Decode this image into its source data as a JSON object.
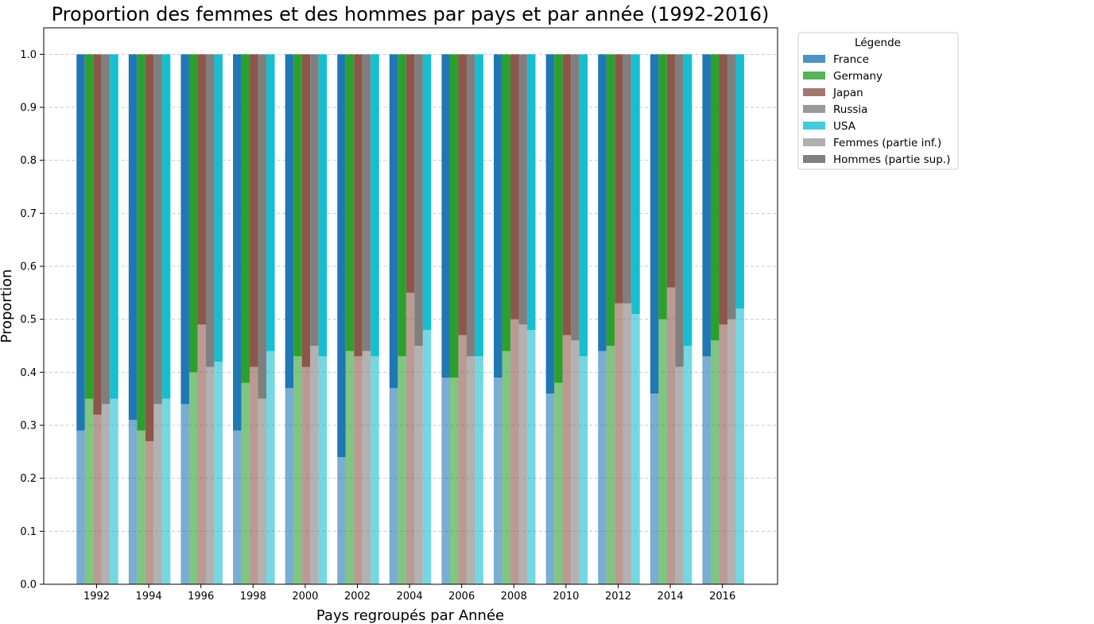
{
  "chart_data": {
    "type": "bar",
    "subtype": "grouped-stacked-proportion",
    "title": "Proportion des femmes et des hommes par pays et par année (1992-2016)",
    "xlabel": "Pays regroupés par Année",
    "ylabel": "Proportion",
    "ylim": [
      0,
      1.05
    ],
    "yticks": [
      "0.0",
      "0.1",
      "0.2",
      "0.3",
      "0.4",
      "0.5",
      "0.6",
      "0.7",
      "0.8",
      "0.9",
      "1.0"
    ],
    "grid": "y dashed",
    "legend_title": "Légende",
    "legend_position": "outside-top-right",
    "categories": [
      "1992",
      "1994",
      "1996",
      "1998",
      "2000",
      "2002",
      "2004",
      "2006",
      "2008",
      "2010",
      "2012",
      "2014",
      "2016"
    ],
    "series": [
      {
        "name": "France",
        "color": "#1f77b4",
        "values": [
          0.29,
          0.31,
          0.34,
          0.29,
          0.37,
          0.24,
          0.37,
          0.39,
          0.39,
          0.36,
          0.44,
          0.36,
          0.43
        ]
      },
      {
        "name": "Germany",
        "color": "#2ca02c",
        "values": [
          0.35,
          0.29,
          0.4,
          0.38,
          0.43,
          0.44,
          0.43,
          0.39,
          0.44,
          0.38,
          0.45,
          0.5,
          0.46
        ]
      },
      {
        "name": "Japan",
        "color": "#8c564b",
        "values": [
          0.32,
          0.27,
          0.49,
          0.41,
          0.41,
          0.43,
          0.55,
          0.47,
          0.5,
          0.47,
          0.53,
          0.56,
          0.49
        ]
      },
      {
        "name": "Russia",
        "color": "#7f7f7f",
        "values": [
          0.34,
          0.34,
          0.41,
          0.35,
          0.45,
          0.44,
          0.45,
          0.43,
          0.49,
          0.46,
          0.53,
          0.41,
          0.5
        ]
      },
      {
        "name": "USA",
        "color": "#17becf",
        "values": [
          0.35,
          0.35,
          0.42,
          0.44,
          0.43,
          0.43,
          0.48,
          0.43,
          0.48,
          0.43,
          0.51,
          0.45,
          0.52
        ]
      }
    ],
    "stack_legend": [
      {
        "name": "Femmes (partie inf.)",
        "color": "#b0b0b0"
      },
      {
        "name": "Hommes (partie sup.)",
        "color": "#808080"
      }
    ]
  }
}
